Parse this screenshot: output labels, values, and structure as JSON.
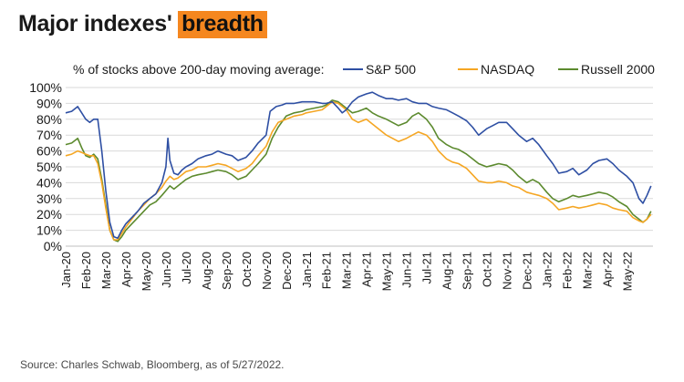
{
  "title_main": "Major indexes'",
  "title_highlight": "breadth",
  "subtitle": "% of stocks above 200-day moving average:",
  "source": "Source: Charles Schwab, Bloomberg, as of 5/27/2022.",
  "colors": {
    "accent": "#f5871f",
    "sp500": "#2e4fa3",
    "nasdaq": "#f5a623",
    "russell": "#5c8a2e"
  },
  "chart_data": {
    "type": "line",
    "title": "Major indexes' breadth",
    "ylabel": "% of stocks above 200-day moving average:",
    "ylim": [
      0,
      100
    ],
    "y_ticks": [
      "0%",
      "10%",
      "20%",
      "30%",
      "40%",
      "50%",
      "60%",
      "70%",
      "80%",
      "90%",
      "100%"
    ],
    "x_ticks": [
      "Jan-20",
      "Feb-20",
      "Mar-20",
      "Apr-20",
      "May-20",
      "Jun-20",
      "Jul-20",
      "Aug-20",
      "Sep-20",
      "Oct-20",
      "Nov-20",
      "Dec-20",
      "Jan-21",
      "Feb-21",
      "Mar-21",
      "Apr-21",
      "May-21",
      "Jun-21",
      "Jul-21",
      "Aug-21",
      "Sep-21",
      "Oct-21",
      "Nov-21",
      "Dec-21",
      "Jan-22",
      "Feb-22",
      "Mar-22",
      "Apr-22",
      "May-22"
    ],
    "grid": true,
    "legend_position": "top",
    "x_unit": "months since Jan-20",
    "series": [
      {
        "name": "S&P 500",
        "color": "#2e4fa3",
        "points": [
          [
            0,
            84
          ],
          [
            0.3,
            85
          ],
          [
            0.6,
            88
          ],
          [
            0.8,
            84
          ],
          [
            1.0,
            80
          ],
          [
            1.2,
            78
          ],
          [
            1.4,
            80
          ],
          [
            1.6,
            80
          ],
          [
            1.8,
            60
          ],
          [
            2.0,
            35
          ],
          [
            2.2,
            15
          ],
          [
            2.4,
            6
          ],
          [
            2.6,
            5
          ],
          [
            2.8,
            10
          ],
          [
            3.0,
            14
          ],
          [
            3.3,
            18
          ],
          [
            3.6,
            22
          ],
          [
            3.9,
            27
          ],
          [
            4.2,
            30
          ],
          [
            4.5,
            33
          ],
          [
            4.8,
            40
          ],
          [
            5.0,
            50
          ],
          [
            5.1,
            68
          ],
          [
            5.2,
            54
          ],
          [
            5.4,
            46
          ],
          [
            5.6,
            45
          ],
          [
            5.8,
            48
          ],
          [
            6.0,
            50
          ],
          [
            6.3,
            52
          ],
          [
            6.6,
            55
          ],
          [
            7.0,
            57
          ],
          [
            7.3,
            58
          ],
          [
            7.6,
            60
          ],
          [
            8.0,
            58
          ],
          [
            8.3,
            57
          ],
          [
            8.6,
            54
          ],
          [
            9.0,
            56
          ],
          [
            9.3,
            60
          ],
          [
            9.6,
            65
          ],
          [
            10.0,
            70
          ],
          [
            10.2,
            85
          ],
          [
            10.5,
            88
          ],
          [
            10.8,
            89
          ],
          [
            11.0,
            90
          ],
          [
            11.4,
            90
          ],
          [
            11.8,
            91
          ],
          [
            12.0,
            91
          ],
          [
            12.4,
            91
          ],
          [
            12.8,
            90
          ],
          [
            13.0,
            90
          ],
          [
            13.3,
            91
          ],
          [
            13.6,
            87
          ],
          [
            13.8,
            84
          ],
          [
            14.0,
            86
          ],
          [
            14.3,
            91
          ],
          [
            14.6,
            94
          ],
          [
            15.0,
            96
          ],
          [
            15.3,
            97
          ],
          [
            15.6,
            95
          ],
          [
            16.0,
            93
          ],
          [
            16.3,
            93
          ],
          [
            16.6,
            92
          ],
          [
            17.0,
            93
          ],
          [
            17.3,
            91
          ],
          [
            17.6,
            90
          ],
          [
            18.0,
            90
          ],
          [
            18.3,
            88
          ],
          [
            18.6,
            87
          ],
          [
            19.0,
            86
          ],
          [
            19.3,
            84
          ],
          [
            19.6,
            82
          ],
          [
            20.0,
            79
          ],
          [
            20.3,
            75
          ],
          [
            20.6,
            70
          ],
          [
            21.0,
            74
          ],
          [
            21.3,
            76
          ],
          [
            21.6,
            78
          ],
          [
            22.0,
            78
          ],
          [
            22.3,
            74
          ],
          [
            22.6,
            70
          ],
          [
            23.0,
            66
          ],
          [
            23.3,
            68
          ],
          [
            23.6,
            64
          ],
          [
            24.0,
            57
          ],
          [
            24.3,
            52
          ],
          [
            24.6,
            46
          ],
          [
            25.0,
            47
          ],
          [
            25.3,
            49
          ],
          [
            25.6,
            45
          ],
          [
            26.0,
            48
          ],
          [
            26.3,
            52
          ],
          [
            26.6,
            54
          ],
          [
            27.0,
            55
          ],
          [
            27.3,
            52
          ],
          [
            27.6,
            48
          ],
          [
            28.0,
            44
          ],
          [
            28.3,
            40
          ],
          [
            28.6,
            30
          ],
          [
            28.8,
            27
          ],
          [
            29.0,
            32
          ],
          [
            29.2,
            38
          ]
        ]
      },
      {
        "name": "NASDAQ",
        "color": "#f5a623",
        "points": [
          [
            0,
            57
          ],
          [
            0.3,
            58
          ],
          [
            0.6,
            60
          ],
          [
            0.8,
            59
          ],
          [
            1.0,
            58
          ],
          [
            1.2,
            57
          ],
          [
            1.4,
            57
          ],
          [
            1.6,
            52
          ],
          [
            1.8,
            40
          ],
          [
            2.0,
            24
          ],
          [
            2.2,
            10
          ],
          [
            2.4,
            4
          ],
          [
            2.6,
            4
          ],
          [
            2.8,
            8
          ],
          [
            3.0,
            12
          ],
          [
            3.3,
            17
          ],
          [
            3.6,
            22
          ],
          [
            3.9,
            26
          ],
          [
            4.2,
            30
          ],
          [
            4.5,
            33
          ],
          [
            4.8,
            37
          ],
          [
            5.0,
            41
          ],
          [
            5.2,
            44
          ],
          [
            5.4,
            42
          ],
          [
            5.6,
            43
          ],
          [
            5.8,
            45
          ],
          [
            6.0,
            47
          ],
          [
            6.3,
            48
          ],
          [
            6.6,
            50
          ],
          [
            7.0,
            50
          ],
          [
            7.3,
            51
          ],
          [
            7.6,
            52
          ],
          [
            8.0,
            51
          ],
          [
            8.3,
            49
          ],
          [
            8.6,
            47
          ],
          [
            9.0,
            49
          ],
          [
            9.3,
            52
          ],
          [
            9.6,
            57
          ],
          [
            10.0,
            63
          ],
          [
            10.3,
            72
          ],
          [
            10.6,
            78
          ],
          [
            11.0,
            80
          ],
          [
            11.4,
            82
          ],
          [
            11.8,
            83
          ],
          [
            12.0,
            84
          ],
          [
            12.4,
            85
          ],
          [
            12.8,
            86
          ],
          [
            13.0,
            88
          ],
          [
            13.3,
            91
          ],
          [
            13.6,
            90
          ],
          [
            13.8,
            88
          ],
          [
            14.0,
            86
          ],
          [
            14.3,
            80
          ],
          [
            14.6,
            78
          ],
          [
            15.0,
            80
          ],
          [
            15.3,
            77
          ],
          [
            15.6,
            74
          ],
          [
            16.0,
            70
          ],
          [
            16.3,
            68
          ],
          [
            16.6,
            66
          ],
          [
            17.0,
            68
          ],
          [
            17.3,
            70
          ],
          [
            17.6,
            72
          ],
          [
            18.0,
            70
          ],
          [
            18.3,
            66
          ],
          [
            18.6,
            60
          ],
          [
            19.0,
            55
          ],
          [
            19.3,
            53
          ],
          [
            19.6,
            52
          ],
          [
            20.0,
            49
          ],
          [
            20.3,
            45
          ],
          [
            20.6,
            41
          ],
          [
            21.0,
            40
          ],
          [
            21.3,
            40
          ],
          [
            21.6,
            41
          ],
          [
            22.0,
            40
          ],
          [
            22.3,
            38
          ],
          [
            22.6,
            37
          ],
          [
            23.0,
            34
          ],
          [
            23.3,
            33
          ],
          [
            23.6,
            32
          ],
          [
            24.0,
            30
          ],
          [
            24.3,
            27
          ],
          [
            24.6,
            23
          ],
          [
            25.0,
            24
          ],
          [
            25.3,
            25
          ],
          [
            25.6,
            24
          ],
          [
            26.0,
            25
          ],
          [
            26.3,
            26
          ],
          [
            26.6,
            27
          ],
          [
            27.0,
            26
          ],
          [
            27.3,
            24
          ],
          [
            27.6,
            23
          ],
          [
            28.0,
            22
          ],
          [
            28.3,
            18
          ],
          [
            28.6,
            16
          ],
          [
            28.8,
            15
          ],
          [
            29.0,
            17
          ],
          [
            29.2,
            20
          ]
        ]
      },
      {
        "name": "Russell 2000",
        "color": "#5c8a2e",
        "points": [
          [
            0,
            64
          ],
          [
            0.3,
            65
          ],
          [
            0.6,
            68
          ],
          [
            0.8,
            62
          ],
          [
            1.0,
            57
          ],
          [
            1.2,
            56
          ],
          [
            1.4,
            58
          ],
          [
            1.6,
            55
          ],
          [
            1.8,
            42
          ],
          [
            2.0,
            26
          ],
          [
            2.2,
            10
          ],
          [
            2.4,
            4
          ],
          [
            2.6,
            3
          ],
          [
            2.8,
            6
          ],
          [
            3.0,
            10
          ],
          [
            3.3,
            14
          ],
          [
            3.6,
            18
          ],
          [
            3.9,
            22
          ],
          [
            4.2,
            26
          ],
          [
            4.5,
            28
          ],
          [
            4.8,
            32
          ],
          [
            5.0,
            35
          ],
          [
            5.2,
            38
          ],
          [
            5.4,
            36
          ],
          [
            5.6,
            38
          ],
          [
            5.8,
            40
          ],
          [
            6.0,
            42
          ],
          [
            6.3,
            44
          ],
          [
            6.6,
            45
          ],
          [
            7.0,
            46
          ],
          [
            7.3,
            47
          ],
          [
            7.6,
            48
          ],
          [
            8.0,
            47
          ],
          [
            8.3,
            45
          ],
          [
            8.6,
            42
          ],
          [
            9.0,
            44
          ],
          [
            9.3,
            48
          ],
          [
            9.6,
            52
          ],
          [
            10.0,
            58
          ],
          [
            10.3,
            68
          ],
          [
            10.6,
            75
          ],
          [
            11.0,
            82
          ],
          [
            11.4,
            84
          ],
          [
            11.8,
            85
          ],
          [
            12.0,
            86
          ],
          [
            12.4,
            87
          ],
          [
            12.8,
            88
          ],
          [
            13.0,
            89
          ],
          [
            13.3,
            92
          ],
          [
            13.6,
            91
          ],
          [
            13.8,
            89
          ],
          [
            14.0,
            87
          ],
          [
            14.3,
            84
          ],
          [
            14.6,
            85
          ],
          [
            15.0,
            87
          ],
          [
            15.3,
            84
          ],
          [
            15.6,
            82
          ],
          [
            16.0,
            80
          ],
          [
            16.3,
            78
          ],
          [
            16.6,
            76
          ],
          [
            17.0,
            78
          ],
          [
            17.3,
            82
          ],
          [
            17.6,
            84
          ],
          [
            18.0,
            80
          ],
          [
            18.3,
            75
          ],
          [
            18.6,
            68
          ],
          [
            19.0,
            64
          ],
          [
            19.3,
            62
          ],
          [
            19.6,
            61
          ],
          [
            20.0,
            58
          ],
          [
            20.3,
            55
          ],
          [
            20.6,
            52
          ],
          [
            21.0,
            50
          ],
          [
            21.3,
            51
          ],
          [
            21.6,
            52
          ],
          [
            22.0,
            51
          ],
          [
            22.3,
            48
          ],
          [
            22.6,
            44
          ],
          [
            23.0,
            40
          ],
          [
            23.3,
            42
          ],
          [
            23.6,
            40
          ],
          [
            24.0,
            34
          ],
          [
            24.3,
            30
          ],
          [
            24.6,
            28
          ],
          [
            25.0,
            30
          ],
          [
            25.3,
            32
          ],
          [
            25.6,
            31
          ],
          [
            26.0,
            32
          ],
          [
            26.3,
            33
          ],
          [
            26.6,
            34
          ],
          [
            27.0,
            33
          ],
          [
            27.3,
            31
          ],
          [
            27.6,
            28
          ],
          [
            28.0,
            25
          ],
          [
            28.3,
            20
          ],
          [
            28.6,
            17
          ],
          [
            28.8,
            15
          ],
          [
            29.0,
            17
          ],
          [
            29.2,
            22
          ]
        ]
      }
    ]
  }
}
